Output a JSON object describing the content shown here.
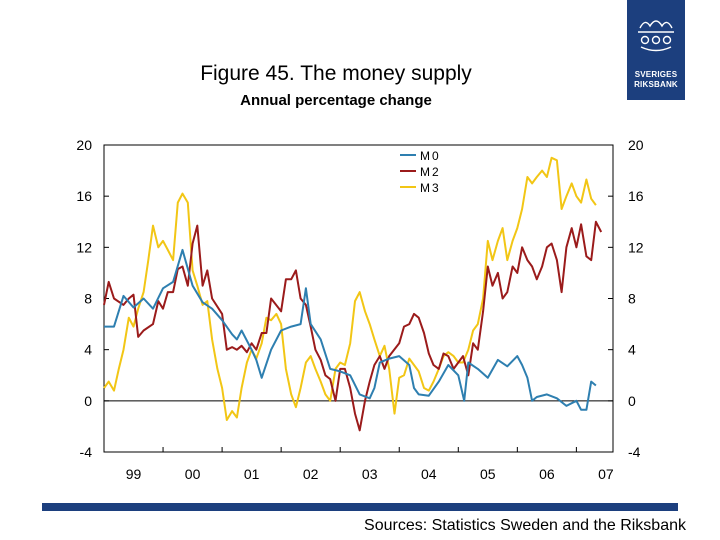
{
  "header": {
    "title": "Figure 45. The money supply",
    "subtitle": "Annual percentage change"
  },
  "logo": {
    "line1": "SVERIGES",
    "line2": "RIKSBANK"
  },
  "source": "Sources: Statistics Sweden and the Riksbank",
  "colors": {
    "M0": "#2e7fb0",
    "M2": "#9b1b1b",
    "M3": "#f2c615",
    "bar": "#1c3f7e"
  },
  "chart_data": {
    "type": "line",
    "title": "Figure 45. The money supply",
    "subtitle": "Annual percentage change",
    "xlabel": "",
    "ylabel": "",
    "ylim": [
      -4,
      20
    ],
    "yticks": [
      -4,
      0,
      4,
      8,
      12,
      16,
      20
    ],
    "ytick_labels": [
      "-4",
      "0",
      "4",
      "8",
      "12",
      "16",
      "20"
    ],
    "xlim": [
      1999.0,
      2007.62
    ],
    "xticks": [
      1999,
      2000,
      2001,
      2002,
      2003,
      2004,
      2005,
      2006,
      2007
    ],
    "xtick_labels": [
      "99",
      "00",
      "01",
      "02",
      "03",
      "04",
      "05",
      "06",
      "07"
    ],
    "secondary_y_axis": true,
    "grid": false,
    "legend": {
      "position": "top-center",
      "entries": [
        "M0",
        "M2",
        "M3"
      ]
    },
    "series": [
      {
        "name": "M0",
        "points": [
          [
            1999.0,
            5.8
          ],
          [
            1999.17,
            5.8
          ],
          [
            1999.33,
            8.2
          ],
          [
            1999.5,
            7.3
          ],
          [
            1999.67,
            8.0
          ],
          [
            1999.83,
            7.2
          ],
          [
            2000.0,
            8.8
          ],
          [
            2000.17,
            9.3
          ],
          [
            2000.33,
            11.8
          ],
          [
            2000.5,
            9.0
          ],
          [
            2000.67,
            7.7
          ],
          [
            2000.83,
            7.2
          ],
          [
            2001.0,
            6.3
          ],
          [
            2001.17,
            5.2
          ],
          [
            2001.25,
            4.8
          ],
          [
            2001.33,
            5.5
          ],
          [
            2001.5,
            4.0
          ],
          [
            2001.58,
            3.2
          ],
          [
            2001.67,
            1.8
          ],
          [
            2001.83,
            4.0
          ],
          [
            2002.0,
            5.5
          ],
          [
            2002.17,
            5.8
          ],
          [
            2002.33,
            6.0
          ],
          [
            2002.42,
            8.8
          ],
          [
            2002.5,
            6.0
          ],
          [
            2002.67,
            4.8
          ],
          [
            2002.83,
            2.5
          ],
          [
            2003.0,
            2.3
          ],
          [
            2003.17,
            2.0
          ],
          [
            2003.33,
            0.5
          ],
          [
            2003.5,
            0.2
          ],
          [
            2003.58,
            1.0
          ],
          [
            2003.67,
            3.0
          ],
          [
            2003.83,
            3.3
          ],
          [
            2004.0,
            3.5
          ],
          [
            2004.17,
            2.8
          ],
          [
            2004.25,
            1.0
          ],
          [
            2004.33,
            0.5
          ],
          [
            2004.5,
            0.4
          ],
          [
            2004.67,
            1.5
          ],
          [
            2004.83,
            2.8
          ],
          [
            2005.0,
            2.0
          ],
          [
            2005.1,
            0.0
          ],
          [
            2005.17,
            3.0
          ],
          [
            2005.33,
            2.5
          ],
          [
            2005.5,
            1.8
          ],
          [
            2005.67,
            3.2
          ],
          [
            2005.83,
            2.7
          ],
          [
            2006.0,
            3.5
          ],
          [
            2006.08,
            2.8
          ],
          [
            2006.17,
            1.8
          ],
          [
            2006.25,
            0.0
          ],
          [
            2006.33,
            0.3
          ],
          [
            2006.5,
            0.5
          ],
          [
            2006.67,
            0.2
          ],
          [
            2006.83,
            -0.4
          ],
          [
            2007.0,
            0.0
          ],
          [
            2007.08,
            -0.7
          ],
          [
            2007.17,
            -0.7
          ],
          [
            2007.25,
            1.5
          ],
          [
            2007.33,
            1.2
          ]
        ]
      },
      {
        "name": "M2",
        "points": [
          [
            1999.0,
            7.5
          ],
          [
            1999.08,
            9.3
          ],
          [
            1999.17,
            8.0
          ],
          [
            1999.33,
            7.5
          ],
          [
            1999.42,
            8.0
          ],
          [
            1999.5,
            8.3
          ],
          [
            1999.58,
            5.0
          ],
          [
            1999.67,
            5.5
          ],
          [
            1999.83,
            6.0
          ],
          [
            1999.92,
            7.8
          ],
          [
            2000.0,
            7.2
          ],
          [
            2000.08,
            8.5
          ],
          [
            2000.17,
            8.5
          ],
          [
            2000.25,
            10.3
          ],
          [
            2000.33,
            10.5
          ],
          [
            2000.42,
            9.0
          ],
          [
            2000.5,
            12.3
          ],
          [
            2000.58,
            13.7
          ],
          [
            2000.67,
            9.0
          ],
          [
            2000.75,
            10.2
          ],
          [
            2000.83,
            8.0
          ],
          [
            2001.0,
            6.8
          ],
          [
            2001.08,
            4.0
          ],
          [
            2001.17,
            4.2
          ],
          [
            2001.25,
            4.0
          ],
          [
            2001.33,
            4.3
          ],
          [
            2001.42,
            3.8
          ],
          [
            2001.5,
            4.5
          ],
          [
            2001.58,
            4.0
          ],
          [
            2001.67,
            5.3
          ],
          [
            2001.75,
            5.3
          ],
          [
            2001.83,
            8.0
          ],
          [
            2002.0,
            7.0
          ],
          [
            2002.08,
            9.5
          ],
          [
            2002.17,
            9.5
          ],
          [
            2002.25,
            10.2
          ],
          [
            2002.33,
            8.0
          ],
          [
            2002.42,
            7.5
          ],
          [
            2002.5,
            5.8
          ],
          [
            2002.58,
            4.0
          ],
          [
            2002.67,
            3.2
          ],
          [
            2002.75,
            2.0
          ],
          [
            2002.83,
            1.7
          ],
          [
            2002.92,
            0.0
          ],
          [
            2003.0,
            2.5
          ],
          [
            2003.08,
            2.5
          ],
          [
            2003.17,
            1.0
          ],
          [
            2003.25,
            -1.0
          ],
          [
            2003.33,
            -2.3
          ],
          [
            2003.42,
            0.0
          ],
          [
            2003.5,
            1.5
          ],
          [
            2003.58,
            2.8
          ],
          [
            2003.67,
            3.5
          ],
          [
            2003.75,
            2.5
          ],
          [
            2003.83,
            3.5
          ],
          [
            2004.0,
            4.5
          ],
          [
            2004.08,
            5.8
          ],
          [
            2004.17,
            6.0
          ],
          [
            2004.25,
            6.8
          ],
          [
            2004.33,
            6.5
          ],
          [
            2004.42,
            5.3
          ],
          [
            2004.5,
            3.7
          ],
          [
            2004.58,
            2.8
          ],
          [
            2004.67,
            2.5
          ],
          [
            2004.75,
            3.7
          ],
          [
            2004.83,
            3.5
          ],
          [
            2004.92,
            2.5
          ],
          [
            2005.0,
            3.0
          ],
          [
            2005.08,
            3.5
          ],
          [
            2005.17,
            2.0
          ],
          [
            2005.25,
            4.5
          ],
          [
            2005.33,
            4.0
          ],
          [
            2005.42,
            7.0
          ],
          [
            2005.5,
            10.5
          ],
          [
            2005.58,
            9.0
          ],
          [
            2005.67,
            10.0
          ],
          [
            2005.75,
            8.0
          ],
          [
            2005.83,
            8.5
          ],
          [
            2005.92,
            10.5
          ],
          [
            2006.0,
            10.0
          ],
          [
            2006.08,
            12.0
          ],
          [
            2006.17,
            11.0
          ],
          [
            2006.25,
            10.5
          ],
          [
            2006.33,
            9.5
          ],
          [
            2006.42,
            10.5
          ],
          [
            2006.5,
            12.0
          ],
          [
            2006.58,
            12.3
          ],
          [
            2006.67,
            11.0
          ],
          [
            2006.75,
            8.5
          ],
          [
            2006.83,
            12.0
          ],
          [
            2006.92,
            13.5
          ],
          [
            2007.0,
            12.0
          ],
          [
            2007.08,
            13.8
          ],
          [
            2007.17,
            11.3
          ],
          [
            2007.25,
            11.0
          ],
          [
            2007.33,
            14.0
          ],
          [
            2007.42,
            13.2
          ]
        ]
      },
      {
        "name": "M3",
        "points": [
          [
            1999.0,
            1.0
          ],
          [
            1999.08,
            1.5
          ],
          [
            1999.17,
            0.8
          ],
          [
            1999.25,
            2.5
          ],
          [
            1999.33,
            4.0
          ],
          [
            1999.42,
            6.5
          ],
          [
            1999.5,
            5.8
          ],
          [
            1999.58,
            7.2
          ],
          [
            1999.67,
            8.5
          ],
          [
            1999.75,
            11.0
          ],
          [
            1999.83,
            13.7
          ],
          [
            1999.92,
            12.0
          ],
          [
            2000.0,
            12.5
          ],
          [
            2000.08,
            11.8
          ],
          [
            2000.17,
            11.0
          ],
          [
            2000.25,
            15.5
          ],
          [
            2000.33,
            16.2
          ],
          [
            2000.42,
            15.5
          ],
          [
            2000.5,
            10.2
          ],
          [
            2000.58,
            9.0
          ],
          [
            2000.67,
            7.5
          ],
          [
            2000.75,
            7.8
          ],
          [
            2000.83,
            4.8
          ],
          [
            2000.92,
            2.5
          ],
          [
            2001.0,
            1.0
          ],
          [
            2001.08,
            -1.5
          ],
          [
            2001.17,
            -0.8
          ],
          [
            2001.25,
            -1.3
          ],
          [
            2001.33,
            1.0
          ],
          [
            2001.42,
            3.0
          ],
          [
            2001.5,
            4.0
          ],
          [
            2001.58,
            3.3
          ],
          [
            2001.67,
            4.5
          ],
          [
            2001.75,
            6.5
          ],
          [
            2001.83,
            6.3
          ],
          [
            2001.92,
            6.8
          ],
          [
            2002.0,
            6.0
          ],
          [
            2002.08,
            2.5
          ],
          [
            2002.17,
            0.5
          ],
          [
            2002.25,
            -0.5
          ],
          [
            2002.33,
            1.0
          ],
          [
            2002.42,
            3.0
          ],
          [
            2002.5,
            3.5
          ],
          [
            2002.58,
            2.5
          ],
          [
            2002.67,
            1.5
          ],
          [
            2002.75,
            0.5
          ],
          [
            2002.83,
            0.0
          ],
          [
            2002.92,
            2.5
          ],
          [
            2003.0,
            3.0
          ],
          [
            2003.08,
            2.8
          ],
          [
            2003.17,
            4.5
          ],
          [
            2003.25,
            7.8
          ],
          [
            2003.33,
            8.5
          ],
          [
            2003.42,
            7.0
          ],
          [
            2003.5,
            6.0
          ],
          [
            2003.58,
            4.8
          ],
          [
            2003.67,
            3.5
          ],
          [
            2003.75,
            4.3
          ],
          [
            2003.83,
            2.5
          ],
          [
            2003.92,
            -1.0
          ],
          [
            2004.0,
            1.8
          ],
          [
            2004.08,
            2.0
          ],
          [
            2004.17,
            3.3
          ],
          [
            2004.25,
            2.8
          ],
          [
            2004.33,
            2.3
          ],
          [
            2004.42,
            1.0
          ],
          [
            2004.5,
            0.8
          ],
          [
            2004.58,
            1.5
          ],
          [
            2004.67,
            2.5
          ],
          [
            2004.75,
            3.5
          ],
          [
            2004.83,
            3.8
          ],
          [
            2004.92,
            3.5
          ],
          [
            2005.0,
            3.0
          ],
          [
            2005.08,
            3.0
          ],
          [
            2005.17,
            4.0
          ],
          [
            2005.25,
            5.5
          ],
          [
            2005.33,
            6.0
          ],
          [
            2005.42,
            8.0
          ],
          [
            2005.5,
            12.5
          ],
          [
            2005.58,
            11.0
          ],
          [
            2005.67,
            12.5
          ],
          [
            2005.75,
            13.5
          ],
          [
            2005.83,
            11.0
          ],
          [
            2005.92,
            12.5
          ],
          [
            2006.0,
            13.5
          ],
          [
            2006.08,
            15.0
          ],
          [
            2006.17,
            17.5
          ],
          [
            2006.25,
            17.0
          ],
          [
            2006.33,
            17.5
          ],
          [
            2006.42,
            18.0
          ],
          [
            2006.5,
            17.5
          ],
          [
            2006.58,
            19.0
          ],
          [
            2006.67,
            18.8
          ],
          [
            2006.75,
            15.0
          ],
          [
            2006.83,
            16.0
          ],
          [
            2006.92,
            17.0
          ],
          [
            2007.0,
            16.0
          ],
          [
            2007.08,
            15.5
          ],
          [
            2007.17,
            17.3
          ],
          [
            2007.25,
            15.8
          ],
          [
            2007.33,
            15.3
          ]
        ]
      }
    ]
  }
}
